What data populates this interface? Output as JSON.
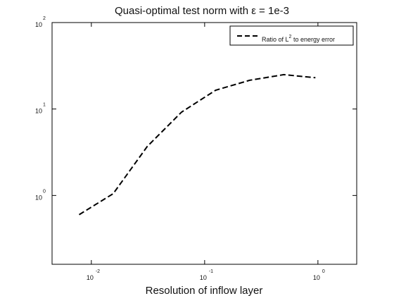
{
  "chart_data": {
    "type": "line",
    "title_prefix": "Quasi-optimal test norm with ",
    "title_symbol": "ε",
    "title_suffix": " =  1e-3",
    "xlabel": "Resolution of inflow layer",
    "ylabel": "",
    "x_scale": "log",
    "y_scale": "log",
    "xlim": [
      0.0045,
      2.2
    ],
    "ylim": [
      0.16,
      100
    ],
    "x_ticks": [
      {
        "base": "10",
        "exp": "-2",
        "value": 0.01
      },
      {
        "base": "10",
        "exp": "-1",
        "value": 0.1
      },
      {
        "base": "10",
        "exp": "0",
        "value": 1
      }
    ],
    "y_ticks": [
      {
        "base": "10",
        "exp": "0",
        "value": 1
      },
      {
        "base": "10",
        "exp": "1",
        "value": 10
      },
      {
        "base": "10",
        "exp": "2",
        "value": 100
      }
    ],
    "grid": false,
    "legend_position": "top-right",
    "series": [
      {
        "name_prefix": "Ratio of L",
        "name_sup": "2",
        "name_suffix": " to energy error",
        "color": "#000000",
        "style": "dashed",
        "x": [
          0.0078,
          0.0156,
          0.0312,
          0.0625,
          0.125,
          0.25,
          0.5,
          0.95
        ],
        "y": [
          0.6,
          1.05,
          3.7,
          9.2,
          16.5,
          21.5,
          25,
          23
        ]
      }
    ]
  }
}
